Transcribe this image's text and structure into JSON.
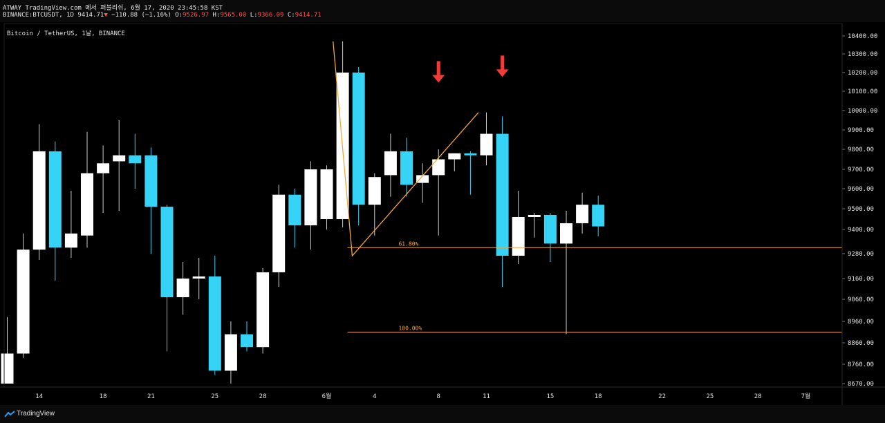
{
  "header": {
    "line1": "ATWAY TradingView.com 에서 퍼블리쉬, 6월 17, 2020 23:45:58 KST",
    "symbol": "BINANCE:BTCUSDT, 1D",
    "last": "9414.71",
    "change": "−110.88 (−1.16%)",
    "o_label": "O:",
    "o": "9526.97",
    "h_label": "H:",
    "h": "9565.00",
    "l_label": "L:",
    "l": "9366.09",
    "c_label": "C:",
    "c": "9414.71",
    "down_arrow": "▼"
  },
  "chart_title": "Bitcoin / TetherUS, 1날, BINANCE",
  "footer": {
    "brand": "TradingView"
  },
  "colors": {
    "up": "#ffffff",
    "down": "#35d4f6",
    "fib": "#f4a63a",
    "arrow": "#f23b37",
    "wick": "#cfcfcf"
  },
  "chart_data": {
    "type": "candlestick",
    "y_ticks": [
      10400,
      10300,
      10200,
      10100,
      10000,
      9900,
      9800,
      9700,
      9600,
      9500,
      9400,
      9280,
      9160,
      9060,
      8960,
      8860,
      8760,
      8670
    ],
    "y_tick_labels": [
      "10400.00",
      "10300.00",
      "10200.00",
      "10100.00",
      "10000.00",
      "9900.00",
      "9800.00",
      "9700.00",
      "9600.00",
      "9500.00",
      "9400.00",
      "9280.00",
      "9160.00",
      "9060.00",
      "8960.00",
      "8860.00",
      "8760.00",
      "8670.00"
    ],
    "x_labels": [
      {
        "label": "14",
        "index": 2
      },
      {
        "label": "18",
        "index": 6
      },
      {
        "label": "21",
        "index": 9
      },
      {
        "label": "25",
        "index": 13
      },
      {
        "label": "28",
        "index": 16
      },
      {
        "label": "6월",
        "index": 20
      },
      {
        "label": "4",
        "index": 23
      },
      {
        "label": "8",
        "index": 27
      },
      {
        "label": "11",
        "index": 30
      },
      {
        "label": "15",
        "index": 34
      },
      {
        "label": "18",
        "index": 37
      },
      {
        "label": "22",
        "index": 41
      },
      {
        "label": "25",
        "index": 44
      },
      {
        "label": "28",
        "index": 47
      },
      {
        "label": "7월",
        "index": 50
      }
    ],
    "candles": [
      {
        "o": 8670,
        "h": 8980,
        "l": 8670,
        "c": 8810
      },
      {
        "o": 8810,
        "h": 9380,
        "l": 8790,
        "c": 9300
      },
      {
        "o": 9300,
        "h": 9930,
        "l": 9250,
        "c": 9790
      },
      {
        "o": 9790,
        "h": 9840,
        "l": 9150,
        "c": 9310
      },
      {
        "o": 9310,
        "h": 9590,
        "l": 9260,
        "c": 9380
      },
      {
        "o": 9370,
        "h": 9890,
        "l": 9310,
        "c": 9680
      },
      {
        "o": 9680,
        "h": 9820,
        "l": 9480,
        "c": 9730
      },
      {
        "o": 9740,
        "h": 9950,
        "l": 9490,
        "c": 9770
      },
      {
        "o": 9770,
        "h": 9880,
        "l": 9600,
        "c": 9730
      },
      {
        "o": 9770,
        "h": 9810,
        "l": 9280,
        "c": 9510
      },
      {
        "o": 9510,
        "h": 9520,
        "l": 8820,
        "c": 9070
      },
      {
        "o": 9070,
        "h": 9240,
        "l": 8990,
        "c": 9160
      },
      {
        "o": 9160,
        "h": 9260,
        "l": 9060,
        "c": 9170
      },
      {
        "o": 9170,
        "h": 9270,
        "l": 8710,
        "c": 8730
      },
      {
        "o": 8730,
        "h": 8960,
        "l": 8670,
        "c": 8900
      },
      {
        "o": 8900,
        "h": 8960,
        "l": 8820,
        "c": 8840
      },
      {
        "o": 8840,
        "h": 9210,
        "l": 8810,
        "c": 9190
      },
      {
        "o": 9190,
        "h": 9620,
        "l": 9120,
        "c": 9570
      },
      {
        "o": 9570,
        "h": 9600,
        "l": 9310,
        "c": 9420
      },
      {
        "o": 9420,
        "h": 9740,
        "l": 9300,
        "c": 9700
      },
      {
        "o": 9450,
        "h": 9720,
        "l": 9400,
        "c": 9700
      },
      {
        "o": 9450,
        "h": 10370,
        "l": 9410,
        "c": 10200
      },
      {
        "o": 10200,
        "h": 10230,
        "l": 9420,
        "c": 9520
      },
      {
        "o": 9520,
        "h": 9680,
        "l": 9370,
        "c": 9660
      },
      {
        "o": 9670,
        "h": 9880,
        "l": 9560,
        "c": 9790
      },
      {
        "o": 9790,
        "h": 9860,
        "l": 9560,
        "c": 9620
      },
      {
        "o": 9630,
        "h": 9730,
        "l": 9530,
        "c": 9670
      },
      {
        "o": 9670,
        "h": 9800,
        "l": 9370,
        "c": 9750
      },
      {
        "o": 9750,
        "h": 9780,
        "l": 9690,
        "c": 9780
      },
      {
        "o": 9780,
        "h": 9790,
        "l": 9570,
        "c": 9770
      },
      {
        "o": 9770,
        "h": 9990,
        "l": 9720,
        "c": 9880
      },
      {
        "o": 9880,
        "h": 9970,
        "l": 9120,
        "c": 9270
      },
      {
        "o": 9270,
        "h": 9590,
        "l": 9230,
        "c": 9460
      },
      {
        "o": 9460,
        "h": 9480,
        "l": 9360,
        "c": 9470
      },
      {
        "o": 9470,
        "h": 9480,
        "l": 9240,
        "c": 9330
      },
      {
        "o": 9330,
        "h": 9490,
        "l": 8900,
        "c": 9430
      },
      {
        "o": 9430,
        "h": 9580,
        "l": 9380,
        "c": 9520
      },
      {
        "o": 9520,
        "h": 9565,
        "l": 9366,
        "c": 9414.71
      }
    ],
    "fib_levels": [
      {
        "label": "61.80%",
        "value": 9310
      },
      {
        "label": "100.00%",
        "value": 8910
      }
    ],
    "annotation_lines": [
      [
        {
          "index": 20.4,
          "value": 10370
        },
        {
          "index": 21.6,
          "value": 9270
        },
        {
          "index": 29.5,
          "value": 9990
        }
      ]
    ],
    "arrows": [
      {
        "index": 27,
        "value": 10150
      },
      {
        "index": 31,
        "value": 10180
      }
    ]
  }
}
